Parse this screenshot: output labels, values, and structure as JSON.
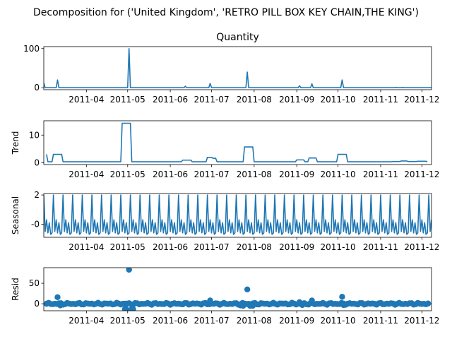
{
  "suptitle": "Decomposition for ('United Kingdom', 'RETRO PILL BOX KEY CHAIN,THE KING')",
  "xticks": [
    {
      "date": "2011-04-01",
      "label": "2011-04"
    },
    {
      "date": "2011-05-01",
      "label": "2011-05"
    },
    {
      "date": "2011-06-01",
      "label": "2011-06"
    },
    {
      "date": "2011-07-01",
      "label": "2011-07"
    },
    {
      "date": "2011-08-01",
      "label": "2011-08"
    },
    {
      "date": "2011-09-01",
      "label": "2011-09"
    },
    {
      "date": "2011-10-01",
      "label": "2011-10"
    },
    {
      "date": "2011-11-01",
      "label": "2011-11"
    },
    {
      "date": "2011-12-01",
      "label": "2011-12"
    }
  ],
  "colors": {
    "series": "#1f77b4",
    "axis": "#000000",
    "zero_line": "#000000"
  },
  "chart_data": [
    {
      "type": "line",
      "title": "Quantity",
      "ylabel": "",
      "xlim": [
        "2011-03-01",
        "2011-12-08"
      ],
      "ylim": [
        -5,
        105
      ],
      "yticks": [
        0,
        100
      ],
      "grid": false,
      "points": [
        [
          "2011-03-01",
          12
        ],
        [
          "2011-03-02",
          0
        ],
        [
          "2011-03-10",
          0
        ],
        [
          "2011-03-11",
          20
        ],
        [
          "2011-03-12",
          0
        ],
        [
          "2011-05-01",
          0
        ],
        [
          "2011-05-02",
          100
        ],
        [
          "2011-05-03",
          0
        ],
        [
          "2011-06-11",
          0
        ],
        [
          "2011-06-12",
          4
        ],
        [
          "2011-06-13",
          0
        ],
        [
          "2011-06-29",
          0
        ],
        [
          "2011-06-30",
          11
        ],
        [
          "2011-07-01",
          0
        ],
        [
          "2011-07-26",
          0
        ],
        [
          "2011-07-27",
          40
        ],
        [
          "2011-07-28",
          0
        ],
        [
          "2011-09-02",
          0
        ],
        [
          "2011-09-03",
          5
        ],
        [
          "2011-09-04",
          0
        ],
        [
          "2011-09-11",
          0
        ],
        [
          "2011-09-12",
          10
        ],
        [
          "2011-09-13",
          0
        ],
        [
          "2011-10-03",
          0
        ],
        [
          "2011-10-04",
          20
        ],
        [
          "2011-10-05",
          0
        ],
        [
          "2011-11-11",
          0
        ],
        [
          "2011-11-12",
          1
        ],
        [
          "2011-11-13",
          0
        ],
        [
          "2011-11-16",
          0
        ],
        [
          "2011-11-17",
          1
        ],
        [
          "2011-11-18",
          0
        ],
        [
          "2011-12-08",
          0
        ]
      ]
    },
    {
      "type": "line",
      "title": "",
      "ylabel": "Trend",
      "xlim": [
        "2011-03-01",
        "2011-12-08"
      ],
      "ylim": [
        -0.7,
        15.2
      ],
      "yticks": [
        0,
        10
      ],
      "grid": false,
      "points": [
        [
          "2011-03-03",
          3
        ],
        [
          "2011-03-04",
          0.3
        ],
        [
          "2011-03-07",
          0.3
        ],
        [
          "2011-03-08",
          3
        ],
        [
          "2011-03-14",
          3
        ],
        [
          "2011-03-15",
          0.3
        ],
        [
          "2011-04-26",
          0.3
        ],
        [
          "2011-04-27",
          14.3
        ],
        [
          "2011-05-03",
          14.3
        ],
        [
          "2011-05-04",
          0.3
        ],
        [
          "2011-06-09",
          0.3
        ],
        [
          "2011-06-10",
          0.9
        ],
        [
          "2011-06-16",
          0.9
        ],
        [
          "2011-06-17",
          0.3
        ],
        [
          "2011-06-27",
          0.3
        ],
        [
          "2011-06-28",
          1.9
        ],
        [
          "2011-07-01",
          1.9
        ],
        [
          "2011-07-02",
          1.6
        ],
        [
          "2011-07-04",
          1.6
        ],
        [
          "2011-07-05",
          0.3
        ],
        [
          "2011-07-24",
          0.3
        ],
        [
          "2011-07-25",
          5.7
        ],
        [
          "2011-07-31",
          5.7
        ],
        [
          "2011-08-01",
          0.3
        ],
        [
          "2011-08-31",
          0.3
        ],
        [
          "2011-09-01",
          1.0
        ],
        [
          "2011-09-06",
          1.0
        ],
        [
          "2011-09-07",
          0.3
        ],
        [
          "2011-09-09",
          0.3
        ],
        [
          "2011-09-10",
          1.7
        ],
        [
          "2011-09-15",
          1.7
        ],
        [
          "2011-09-16",
          0.3
        ],
        [
          "2011-09-30",
          0.3
        ],
        [
          "2011-10-01",
          3
        ],
        [
          "2011-10-07",
          3
        ],
        [
          "2011-10-08",
          0.3
        ],
        [
          "2011-11-09",
          0.3
        ],
        [
          "2011-11-10",
          0.4
        ],
        [
          "2011-11-15",
          0.4
        ],
        [
          "2011-11-16",
          0.6
        ],
        [
          "2011-11-20",
          0.6
        ],
        [
          "2011-11-21",
          0.4
        ],
        [
          "2011-11-27",
          0.4
        ],
        [
          "2011-11-28",
          0.5
        ],
        [
          "2011-12-04",
          0.5
        ],
        [
          "2011-12-05",
          0.3
        ]
      ]
    },
    {
      "type": "line",
      "title": "",
      "ylabel": "Seasonal",
      "xlim": [
        "2011-03-01",
        "2011-12-08"
      ],
      "ylim": [
        -0.9,
        2.1
      ],
      "yticks": [
        0,
        2
      ],
      "grid": false,
      "period_days": 7,
      "cycle": [
        2.0,
        -0.5,
        0.3,
        -0.6,
        0.1,
        -0.7,
        -0.6
      ],
      "start": "2011-03-01",
      "end": "2011-12-08"
    },
    {
      "type": "scatter",
      "title": "",
      "ylabel": "Resid",
      "xlim": [
        "2011-03-01",
        "2011-12-08"
      ],
      "ylim": [
        -17,
        88
      ],
      "yticks": [
        0,
        50
      ],
      "grid": false,
      "zero_line": true,
      "baseline": {
        "start": "2011-03-03",
        "end": "2011-12-06",
        "step_days": 1.5,
        "amplitude": 2.5
      },
      "points": [
        [
          "2011-03-11",
          16
        ],
        [
          "2011-03-13",
          -4
        ],
        [
          "2011-04-29",
          -13
        ],
        [
          "2011-04-30",
          -13
        ],
        [
          "2011-05-02",
          83
        ],
        [
          "2011-05-04",
          -13
        ],
        [
          "2011-05-05",
          -13
        ],
        [
          "2011-06-30",
          8
        ],
        [
          "2011-07-22",
          -4
        ],
        [
          "2011-07-24",
          -5
        ],
        [
          "2011-07-27",
          35
        ],
        [
          "2011-07-29",
          -5
        ],
        [
          "2011-07-31",
          -5
        ],
        [
          "2011-09-03",
          4
        ],
        [
          "2011-09-05",
          -3
        ],
        [
          "2011-09-12",
          8
        ],
        [
          "2011-10-04",
          17
        ],
        [
          "2011-10-05",
          -3
        ]
      ]
    }
  ]
}
